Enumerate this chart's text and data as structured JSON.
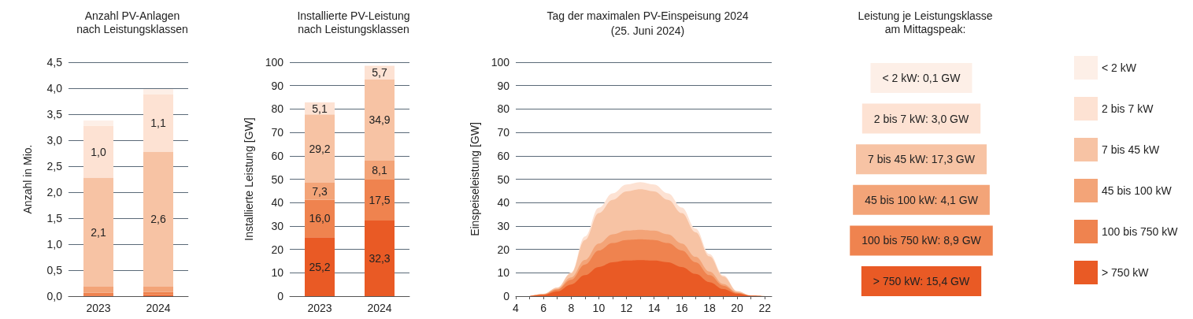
{
  "chart_data": [
    {
      "type": "bar",
      "title": "Anzahl PV-Anlagen\nnach Leistungsklassen",
      "ylabel": "Anzahl in Mio.",
      "categories": [
        "2023",
        "2024"
      ],
      "stacked": true,
      "grid": "y",
      "ylim": [
        0,
        4.5
      ],
      "yticks": [
        {
          "value": 0,
          "label": "0,0"
        },
        {
          "value": 0.5,
          "label": "0,5"
        },
        {
          "value": 1,
          "label": "1,0"
        },
        {
          "value": 1.5,
          "label": "1,5"
        },
        {
          "value": 2,
          "label": "2,0"
        },
        {
          "value": 2.5,
          "label": "2,5"
        },
        {
          "value": 3,
          "label": "3,0"
        },
        {
          "value": 3.5,
          "label": "3,5"
        },
        {
          "value": 4,
          "label": "4,0"
        },
        {
          "value": 4.5,
          "label": "4,5"
        }
      ],
      "series": [
        {
          "color": "#e95a25",
          "values": [
            0.01,
            0.02
          ]
        },
        {
          "color": "#ef834f",
          "values": [
            0.06,
            0.06
          ]
        },
        {
          "color": "#f3a478",
          "values": [
            0.11,
            0.1
          ]
        },
        {
          "color": "#f7c3a4",
          "values": [
            2.1,
            2.6
          ],
          "value_labels": [
            "2,1",
            "2,6"
          ]
        },
        {
          "color": "#fde2d3",
          "values": [
            1.0,
            1.1
          ],
          "value_labels": [
            "1,0",
            "1,1"
          ]
        },
        {
          "color": "#fdefe7",
          "values": [
            0.1,
            0.1
          ]
        }
      ]
    },
    {
      "type": "bar",
      "title": "Installierte PV-Leistung\nnach Leistungsklassen",
      "ylabel": "Installierte Leistung [GW]",
      "categories": [
        "2023",
        "2024"
      ],
      "stacked": true,
      "grid": "y",
      "ylim": [
        0,
        100
      ],
      "yticks": [
        0,
        10,
        20,
        30,
        40,
        50,
        60,
        70,
        80,
        90,
        100
      ],
      "series": [
        {
          "color": "#e95a25",
          "values": [
            25.2,
            32.3
          ],
          "value_labels": [
            "25,2",
            "32,3"
          ]
        },
        {
          "color": "#ef834f",
          "values": [
            16.0,
            17.5
          ],
          "value_labels": [
            "16,0",
            "17,5"
          ]
        },
        {
          "color": "#f3a478",
          "values": [
            7.3,
            8.1
          ],
          "value_labels": [
            "7,3",
            "8,1"
          ]
        },
        {
          "color": "#f7c3a4",
          "values": [
            29.2,
            34.9
          ],
          "value_labels": [
            "29,2",
            "34,9"
          ]
        },
        {
          "color": "#fde2d3",
          "values": [
            5.1,
            5.7
          ],
          "value_labels": [
            "5,1",
            "5,7"
          ]
        }
      ]
    },
    {
      "type": "area",
      "title": "Tag der maximalen PV-Einspeisung 2024",
      "subtitle": "(25. Juni 2024)",
      "ylabel": "Einspeiseleistung [GW]",
      "stacked": true,
      "grid": "y",
      "legend": "right",
      "x": [
        5,
        6,
        7,
        8,
        9,
        10,
        11,
        12,
        13,
        14,
        15,
        16,
        17,
        18,
        19,
        20,
        21,
        22
      ],
      "xlim": [
        4,
        22.5
      ],
      "xticks": [
        4,
        {
          "value": 5,
          "label": null
        },
        6,
        {
          "value": 7,
          "label": null
        },
        8,
        {
          "value": 9,
          "label": null
        },
        10,
        {
          "value": 11,
          "label": null
        },
        12,
        {
          "value": 13,
          "label": null
        },
        14,
        {
          "value": 15,
          "label": null
        },
        16,
        {
          "value": 17,
          "label": null
        },
        18,
        {
          "value": 19,
          "label": null
        },
        20,
        {
          "value": 21,
          "label": null
        },
        22
      ],
      "ylim": [
        0,
        100
      ],
      "yticks": [
        0,
        10,
        20,
        30,
        40,
        50,
        60,
        70,
        80,
        90,
        100
      ],
      "series": [
        {
          "name": "> 750 kW",
          "color": "#e95a25",
          "values": [
            0,
            0.5,
            2,
            5,
            9,
            12.5,
            14.5,
            15.2,
            15.4,
            15.2,
            14.5,
            12.5,
            9.5,
            6,
            3,
            1,
            0.2,
            0
          ]
        },
        {
          "name": "100 bis 750 kW",
          "color": "#ef834f",
          "values": [
            0,
            0.2,
            0.8,
            2,
            4.5,
            7,
            8.2,
            8.8,
            8.9,
            8.8,
            8.2,
            7,
            5,
            3,
            1.5,
            0.4,
            0,
            0
          ]
        },
        {
          "name": "45 bis 100 kW",
          "color": "#f3a478",
          "values": [
            0,
            0.1,
            0.3,
            1,
            2,
            3,
            3.7,
            4,
            4.1,
            4,
            3.7,
            3,
            2.3,
            1.5,
            0.7,
            0.2,
            0,
            0
          ]
        },
        {
          "name": "7 bis 45 kW",
          "color": "#f7c3a4",
          "values": [
            0,
            0.2,
            0.5,
            1.8,
            8.5,
            13,
            14.8,
            16.8,
            17.3,
            16.8,
            14.8,
            13,
            10.5,
            6.5,
            3.2,
            0.5,
            0.1,
            0
          ]
        },
        {
          "name": "2 bis 7 kW",
          "color": "#fde2d3",
          "values": [
            0,
            0,
            0.1,
            0.3,
            1.5,
            2.3,
            2.7,
            2.9,
            3.0,
            2.9,
            2.7,
            2.4,
            1.6,
            1,
            0.5,
            0.1,
            0,
            0
          ]
        },
        {
          "name": "< 2 kW",
          "color": "#fdefe7",
          "values": [
            null,
            null,
            null,
            null,
            null,
            null,
            null,
            null,
            null,
            null,
            null,
            null,
            null,
            null,
            null,
            null,
            null,
            null
          ]
        }
      ]
    },
    {
      "type": "other",
      "title": "Leistung je Leistungsklasse\nam Mittagspeak:",
      "categories": [
        "< 2 kW: 0,1 GW",
        "2 bis 7 kW: 3,0 GW",
        "7 bis 45 kW: 17,3 GW",
        "45 bis 100 kW: 4,1 GW",
        "100 bis 750 kW: 8,9 GW",
        "> 750 kW: 15,4 GW"
      ],
      "colors": [
        "#fdefe7",
        "#fde2d3",
        "#f7c3a4",
        "#f3a478",
        "#ef834f",
        "#e95a25"
      ]
    }
  ]
}
